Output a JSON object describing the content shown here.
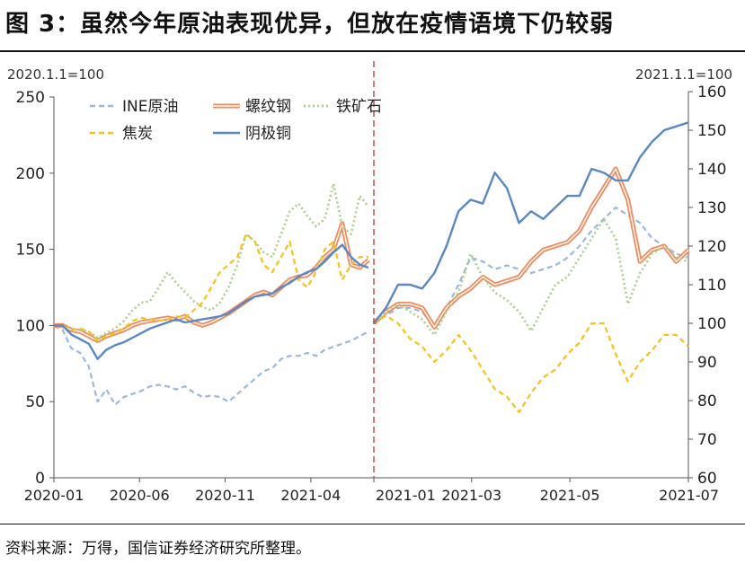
{
  "title": "图 3：虽然今年原油表现优异，但放在疫情语境下仍较弱",
  "source": "资料来源：万得，国信证券经济研究所整理。",
  "colors": {
    "INE原油": "#9bb7dd",
    "螺纹钢": "#ef8a5c",
    "铁矿石": "#a9cf8c",
    "焦炭": "#f5c21a",
    "阴极铜": "#5b87c2",
    "divider": "#c0504d",
    "axis": "#555555"
  },
  "legend": [
    {
      "name": "INE原油",
      "style": "dash"
    },
    {
      "name": "螺纹钢",
      "style": "double"
    },
    {
      "name": "铁矿石",
      "style": "dot"
    },
    {
      "name": "焦炭",
      "style": "dash"
    },
    {
      "name": "阴极铜",
      "style": "solid"
    }
  ],
  "chart_data": [
    {
      "type": "line",
      "base_label": "2020.1.1=100",
      "ylim": [
        0,
        250
      ],
      "yticks": [
        0,
        50,
        100,
        150,
        200,
        250
      ],
      "xticks": [
        "2020-01",
        "2020-06",
        "2020-11",
        "2021-04"
      ],
      "x": [
        0,
        0.5,
        1,
        1.5,
        2,
        2.5,
        3,
        3.5,
        4,
        4.5,
        5,
        5.5,
        6,
        6.5,
        7,
        7.5,
        8,
        8.5,
        9,
        9.5,
        10,
        10.5,
        11,
        11.5,
        12,
        12.5,
        13,
        13.5,
        14,
        14.5,
        15,
        15.5,
        16,
        16.5,
        17,
        17.5,
        18
      ],
      "grid": false,
      "series": [
        {
          "name": "INE原油",
          "values": [
            100,
            97,
            85,
            82,
            73,
            50,
            58,
            48,
            53,
            55,
            57,
            60,
            61,
            60,
            58,
            60,
            56,
            53,
            54,
            53,
            50,
            55,
            60,
            65,
            70,
            72,
            78,
            80,
            80,
            82,
            80,
            84,
            86,
            88,
            90,
            93,
            96
          ]
        },
        {
          "name": "螺纹钢",
          "values": [
            100,
            100,
            97,
            96,
            93,
            90,
            93,
            95,
            97,
            100,
            102,
            103,
            104,
            105,
            104,
            106,
            102,
            100,
            102,
            105,
            108,
            112,
            116,
            120,
            122,
            120,
            125,
            130,
            132,
            133,
            138,
            145,
            150,
            167,
            140,
            138,
            143
          ]
        },
        {
          "name": "铁矿石",
          "values": [
            100,
            100,
            98,
            97,
            96,
            92,
            95,
            98,
            103,
            110,
            115,
            116,
            125,
            135,
            128,
            122,
            116,
            112,
            110,
            115,
            125,
            140,
            160,
            155,
            148,
            145,
            160,
            175,
            180,
            172,
            165,
            170,
            193,
            165,
            160,
            185,
            178
          ]
        },
        {
          "name": "焦炭",
          "values": [
            100,
            100,
            97,
            98,
            96,
            90,
            93,
            95,
            98,
            103,
            105,
            104,
            103,
            104,
            106,
            105,
            110,
            115,
            125,
            135,
            140,
            145,
            160,
            155,
            140,
            135,
            145,
            155,
            130,
            125,
            135,
            150,
            155,
            130,
            140,
            145,
            145
          ]
        },
        {
          "name": "阴极铜",
          "values": [
            100,
            100,
            94,
            91,
            88,
            78,
            84,
            87,
            89,
            92,
            95,
            98,
            100,
            102,
            104,
            102,
            103,
            104,
            105,
            106,
            108,
            112,
            116,
            119,
            120,
            121,
            125,
            128,
            132,
            135,
            137,
            142,
            148,
            153,
            145,
            140,
            138
          ]
        }
      ]
    },
    {
      "type": "line",
      "base_label": "2021.1.1=100",
      "ylim": [
        60,
        160
      ],
      "yticks": [
        60,
        70,
        80,
        90,
        100,
        110,
        120,
        130,
        140,
        150,
        160
      ],
      "xticks": [
        "2021-01",
        "2021-03",
        "2021-05",
        "2021-07"
      ],
      "x": [
        0,
        0.25,
        0.5,
        0.75,
        1,
        1.25,
        1.5,
        1.75,
        2,
        2.25,
        2.5,
        2.75,
        3,
        3.25,
        3.5,
        3.75,
        4,
        4.25,
        4.5,
        4.75,
        5,
        5.25,
        5.5,
        5.75,
        6,
        6.25,
        6.5
      ],
      "grid": false,
      "series": [
        {
          "name": "INE原油",
          "values": [
            100,
            102,
            104,
            104,
            103,
            99,
            104,
            110,
            117,
            116,
            114,
            115,
            114,
            113,
            114,
            115,
            117,
            120,
            124,
            127,
            130,
            128,
            126,
            122,
            120,
            118,
            117
          ]
        },
        {
          "name": "螺纹钢",
          "values": [
            100,
            103,
            105,
            105,
            104,
            99,
            104,
            107,
            109,
            112,
            110,
            111,
            112,
            116,
            119,
            120,
            121,
            124,
            130,
            135,
            140,
            132,
            116,
            119,
            120,
            116,
            119
          ]
        },
        {
          "name": "铁矿石",
          "values": [
            100,
            103,
            105,
            103,
            101,
            97,
            103,
            108,
            118,
            112,
            108,
            106,
            103,
            98,
            104,
            110,
            112,
            117,
            122,
            127,
            122,
            105,
            113,
            118,
            120,
            117,
            116
          ]
        },
        {
          "name": "焦炭",
          "values": [
            100,
            102,
            100,
            96,
            94,
            90,
            93,
            97,
            93,
            88,
            83,
            81,
            77,
            82,
            86,
            88,
            92,
            95,
            100,
            100,
            92,
            85,
            90,
            93,
            97,
            97,
            94
          ]
        },
        {
          "name": "阴极铜",
          "values": [
            100,
            104,
            110,
            110,
            109,
            113,
            120,
            129,
            132,
            131,
            139,
            135,
            126,
            129,
            127,
            130,
            133,
            133,
            140,
            139,
            137,
            137,
            143,
            147,
            150,
            151,
            152
          ]
        }
      ]
    }
  ]
}
